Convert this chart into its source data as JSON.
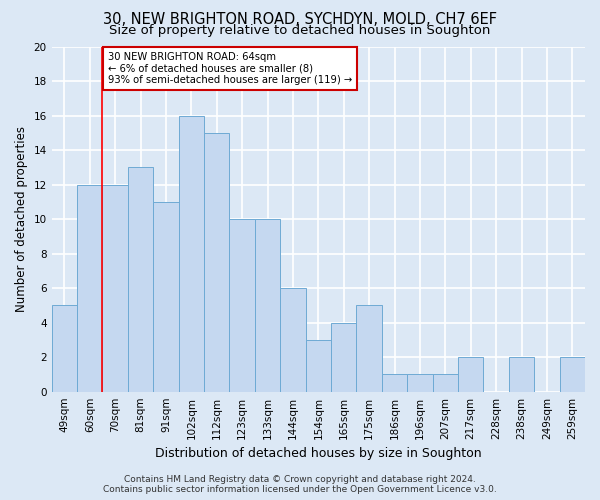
{
  "title1": "30, NEW BRIGHTON ROAD, SYCHDYN, MOLD, CH7 6EF",
  "title2": "Size of property relative to detached houses in Soughton",
  "xlabel": "Distribution of detached houses by size in Soughton",
  "ylabel": "Number of detached properties",
  "categories": [
    "49sqm",
    "60sqm",
    "70sqm",
    "81sqm",
    "91sqm",
    "102sqm",
    "112sqm",
    "123sqm",
    "133sqm",
    "144sqm",
    "154sqm",
    "165sqm",
    "175sqm",
    "186sqm",
    "196sqm",
    "207sqm",
    "217sqm",
    "228sqm",
    "238sqm",
    "249sqm",
    "259sqm"
  ],
  "values": [
    5,
    12,
    12,
    13,
    11,
    16,
    15,
    10,
    10,
    6,
    3,
    4,
    5,
    1,
    1,
    1,
    2,
    0,
    2,
    0,
    2
  ],
  "bar_color": "#c5d8f0",
  "bar_edge_color": "#6eaad4",
  "background_color": "#dce8f5",
  "grid_color": "#ffffff",
  "annotation_text": "30 NEW BRIGHTON ROAD: 64sqm\n← 6% of detached houses are smaller (8)\n93% of semi-detached houses are larger (119) →",
  "annotation_box_color": "#ffffff",
  "annotation_box_edge": "#cc0000",
  "red_line_x": 1.5,
  "ylim": [
    0,
    20
  ],
  "yticks": [
    0,
    2,
    4,
    6,
    8,
    10,
    12,
    14,
    16,
    18,
    20
  ],
  "footer_text": "Contains HM Land Registry data © Crown copyright and database right 2024.\nContains public sector information licensed under the Open Government Licence v3.0.",
  "title1_fontsize": 10.5,
  "title2_fontsize": 9.5,
  "xlabel_fontsize": 9,
  "ylabel_fontsize": 8.5,
  "tick_fontsize": 7.5,
  "footer_fontsize": 6.5
}
